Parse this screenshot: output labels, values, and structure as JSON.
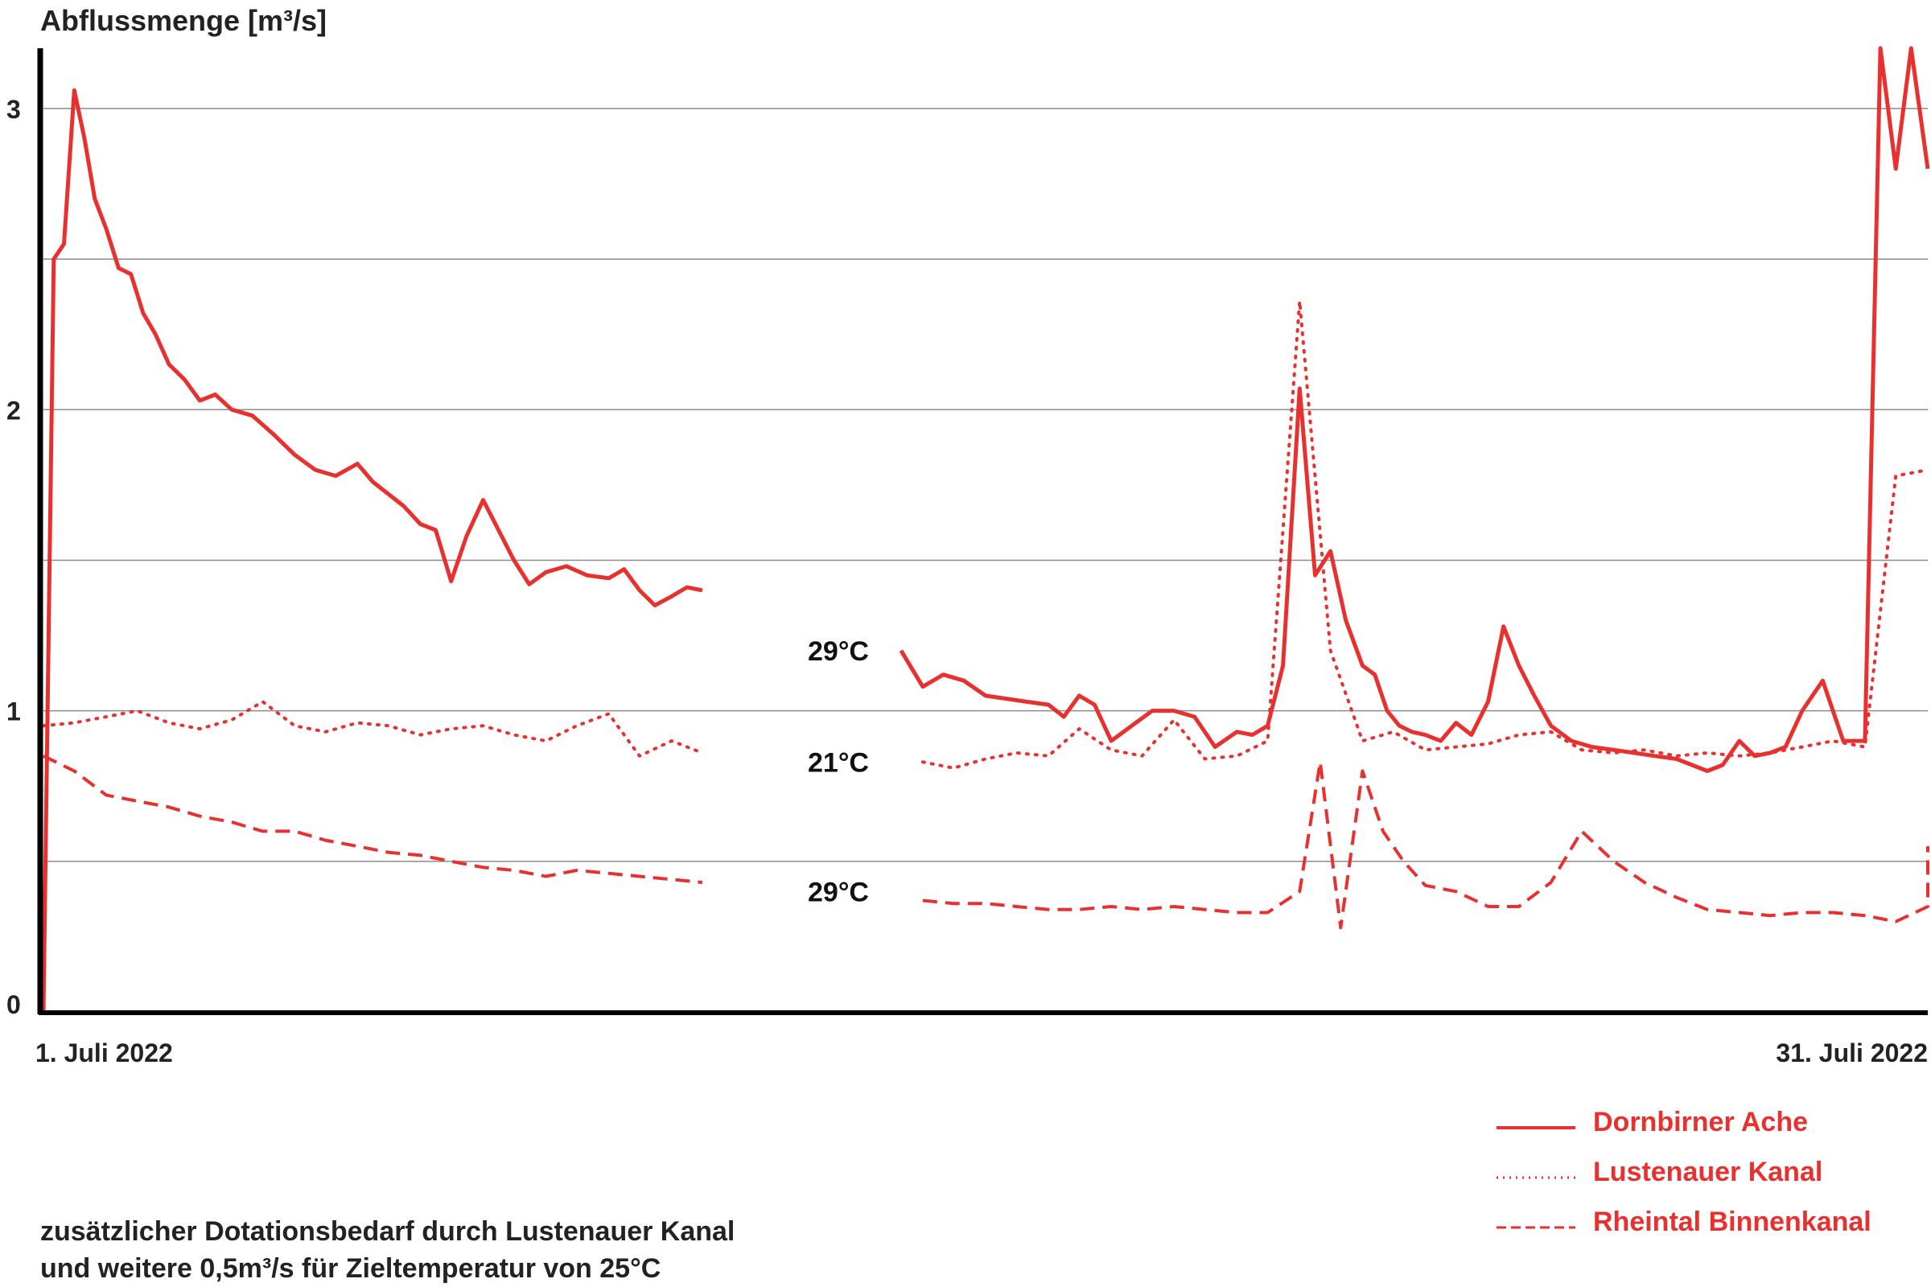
{
  "colors": {
    "series": "#e8312f",
    "axis": "#000000",
    "grid": "#8c8c8c",
    "text": "#222222"
  },
  "chart_data": {
    "type": "line",
    "title": "",
    "ylabel": "Abflussmenge [m³/s]",
    "ylim": [
      0,
      3.2
    ],
    "yticks": [
      {
        "value": 0,
        "label": "0"
      },
      {
        "value": 1,
        "label": "1"
      },
      {
        "value": 2,
        "label": "2"
      },
      {
        "value": 3,
        "label": "3"
      }
    ],
    "gridlines": [
      0.5,
      1,
      1.5,
      2,
      2.5,
      3
    ],
    "grid": true,
    "xlim": [
      "2022-07-01",
      "2022-07-31"
    ],
    "xticks": [
      {
        "value": "2022-07-01",
        "label": "1. Juli 2022"
      },
      {
        "value": "2022-07-31",
        "label": "31. Juli 2022"
      }
    ],
    "legend_position": "bottom-right",
    "series": [
      {
        "name": "Dornbirner Ache",
        "style": "solid",
        "x": [
          "2022-07-01",
          "2022-07-01",
          "2022-07-01",
          "2022-07-01",
          "2022-07-01",
          "2022-07-01",
          "2022-07-02",
          "2022-07-02",
          "2022-07-02",
          "2022-07-02",
          "2022-07-02",
          "2022-07-03",
          "2022-07-03",
          "2022-07-03",
          "2022-07-03",
          "2022-07-04",
          "2022-07-04",
          "2022-07-04",
          "2022-07-05",
          "2022-07-05",
          "2022-07-05",
          "2022-07-06",
          "2022-07-06",
          "2022-07-06",
          "2022-07-06",
          "2022-07-07",
          "2022-07-07",
          "2022-07-07",
          "2022-07-07",
          "2022-07-08",
          "2022-07-08",
          "2022-07-08",
          "2022-07-08",
          "2022-07-09",
          "2022-07-09",
          "2022-07-09",
          "2022-07-10",
          "2022-07-10",
          "2022-07-10",
          "2022-07-10",
          "2022-07-11",
          "2022-07-11",
          "2022-07-11",
          "2022-07-11",
          "2022-07-12",
          "2022-07-12",
          "2022-07-12",
          "2022-07-12",
          "2022-07-13",
          "2022-07-13",
          "2022-07-13",
          "2022-07-14",
          "2022-07-14",
          "2022-07-14",
          "2022-07-15",
          "2022-07-15",
          "2022-07-15",
          "2022-07-16",
          "2022-07-16",
          "2022-07-16",
          "2022-07-17",
          "2022-07-17",
          "2022-07-17",
          "2022-07-17",
          "2022-07-18",
          "2022-07-18",
          "2022-07-18",
          "2022-07-19",
          "2022-07-19",
          "2022-07-19",
          "2022-07-20",
          "2022-07-20",
          "2022-07-20",
          "2022-07-20",
          "2022-07-21",
          "2022-07-21",
          "2022-07-21",
          "2022-07-21",
          "2022-07-22",
          "2022-07-22",
          "2022-07-22",
          "2022-07-22",
          "2022-07-22",
          "2022-07-23",
          "2022-07-23",
          "2022-07-23",
          "2022-07-23",
          "2022-07-24",
          "2022-07-24",
          "2022-07-24",
          "2022-07-24",
          "2022-07-25",
          "2022-07-25",
          "2022-07-25",
          "2022-07-26",
          "2022-07-26",
          "2022-07-26",
          "2022-07-27",
          "2022-07-27",
          "2022-07-27",
          "2022-07-27",
          "2022-07-28",
          "2022-07-28",
          "2022-07-28",
          "2022-07-28",
          "2022-07-29",
          "2022-07-29",
          "2022-07-29",
          "2022-07-30",
          "2022-07-30",
          "2022-07-30",
          "2022-07-30",
          "2022-07-31",
          "2022-07-31",
          "2022-07-31",
          "2022-07-31"
        ],
        "y": [
          0,
          2.5,
          2.55,
          3.06,
          2.9,
          2.7,
          2.6,
          2.47,
          2.45,
          2.32,
          2.25,
          2.15,
          2.1,
          2.03,
          2.05,
          2.0,
          1.98,
          1.92,
          1.85,
          1.8,
          1.78,
          1.82,
          1.76,
          1.72,
          1.68,
          1.62,
          1.6,
          1.43,
          1.58,
          1.7,
          1.6,
          1.5,
          1.42,
          1.46,
          1.48,
          1.45,
          1.44,
          1.47,
          1.4,
          1.35,
          1.38,
          1.41,
          1.4,
          1.38,
          1.33,
          1.28,
          1.26,
          1.12,
          1.37,
          1.28,
          1.23,
          1.16,
          1.12,
          1.2,
          1.08,
          1.12,
          1.1,
          1.05,
          1.04,
          1.03,
          1.02,
          0.98,
          1.05,
          1.02,
          0.9,
          0.95,
          1.0,
          1.0,
          0.98,
          0.88,
          0.93,
          0.92,
          0.95,
          1.15,
          2.07,
          1.45,
          1.53,
          1.3,
          1.15,
          1.12,
          1.0,
          0.95,
          0.93,
          0.92,
          0.9,
          0.96,
          0.92,
          1.03,
          1.28,
          1.15,
          1.05,
          0.95,
          0.9,
          0.88,
          0.87,
          0.86,
          0.85,
          0.84,
          0.82,
          0.8,
          0.82,
          0.9,
          0.85,
          0.86,
          0.88,
          1.0,
          1.1,
          0.9,
          0.9,
          3.2,
          2.8,
          3.2,
          2.8,
          2.8,
          2.8,
          2.8
        ],
        "annotation": {
          "date": "2022-07-13",
          "value": 1.2,
          "label": "29°C"
        }
      },
      {
        "name": "Lustenauer Kanal",
        "style": "dotted",
        "x": [
          "2022-07-01",
          "2022-07-01",
          "2022-07-02",
          "2022-07-02",
          "2022-07-03",
          "2022-07-03",
          "2022-07-04",
          "2022-07-04",
          "2022-07-05",
          "2022-07-05",
          "2022-07-06",
          "2022-07-06",
          "2022-07-07",
          "2022-07-07",
          "2022-07-08",
          "2022-07-08",
          "2022-07-09",
          "2022-07-09",
          "2022-07-10",
          "2022-07-10",
          "2022-07-11",
          "2022-07-11",
          "2022-07-12",
          "2022-07-12",
          "2022-07-13",
          "2022-07-14",
          "2022-07-15",
          "2022-07-15",
          "2022-07-16",
          "2022-07-16",
          "2022-07-17",
          "2022-07-17",
          "2022-07-18",
          "2022-07-18",
          "2022-07-19",
          "2022-07-19",
          "2022-07-20",
          "2022-07-20",
          "2022-07-21",
          "2022-07-21",
          "2022-07-22",
          "2022-07-22",
          "2022-07-23",
          "2022-07-23",
          "2022-07-24",
          "2022-07-24",
          "2022-07-25",
          "2022-07-25",
          "2022-07-26",
          "2022-07-26",
          "2022-07-27",
          "2022-07-27",
          "2022-07-28",
          "2022-07-28",
          "2022-07-29",
          "2022-07-29",
          "2022-07-30",
          "2022-07-30",
          "2022-07-31",
          "2022-07-31"
        ],
        "y": [
          0.95,
          0.96,
          0.98,
          1.0,
          0.96,
          0.94,
          0.97,
          1.03,
          0.95,
          0.93,
          0.96,
          0.95,
          0.92,
          0.94,
          0.95,
          0.92,
          0.9,
          0.95,
          0.99,
          0.85,
          0.9,
          0.86,
          0.87,
          0.84,
          0.82,
          0.81,
          0.83,
          0.81,
          0.84,
          0.86,
          0.85,
          0.94,
          0.87,
          0.85,
          0.97,
          0.84,
          0.85,
          0.9,
          2.36,
          1.2,
          0.9,
          0.93,
          0.87,
          0.88,
          0.89,
          0.92,
          0.93,
          0.87,
          0.86,
          0.87,
          0.85,
          0.86,
          0.85,
          0.86,
          0.88,
          0.9,
          0.88,
          1.78,
          1.8,
          1.8
        ],
        "annotation": {
          "date": "2022-07-13",
          "value": 0.83,
          "label": "21°C"
        }
      },
      {
        "name": "Rheintal Binnenkanal",
        "style": "dashed",
        "x": [
          "2022-07-01",
          "2022-07-01",
          "2022-07-02",
          "2022-07-02",
          "2022-07-03",
          "2022-07-03",
          "2022-07-04",
          "2022-07-04",
          "2022-07-05",
          "2022-07-05",
          "2022-07-06",
          "2022-07-06",
          "2022-07-07",
          "2022-07-07",
          "2022-07-08",
          "2022-07-08",
          "2022-07-09",
          "2022-07-09",
          "2022-07-10",
          "2022-07-10",
          "2022-07-11",
          "2022-07-11",
          "2022-07-12",
          "2022-07-12",
          "2022-07-13",
          "2022-07-14",
          "2022-07-15",
          "2022-07-15",
          "2022-07-16",
          "2022-07-16",
          "2022-07-17",
          "2022-07-17",
          "2022-07-18",
          "2022-07-18",
          "2022-07-19",
          "2022-07-19",
          "2022-07-20",
          "2022-07-20",
          "2022-07-21",
          "2022-07-21",
          "2022-07-21",
          "2022-07-22",
          "2022-07-22",
          "2022-07-22",
          "2022-07-23",
          "2022-07-23",
          "2022-07-24",
          "2022-07-24",
          "2022-07-25",
          "2022-07-25",
          "2022-07-26",
          "2022-07-26",
          "2022-07-27",
          "2022-07-27",
          "2022-07-28",
          "2022-07-28",
          "2022-07-29",
          "2022-07-29",
          "2022-07-30",
          "2022-07-30",
          "2022-07-31",
          "2022-07-31"
        ],
        "y": [
          0.85,
          0.8,
          0.72,
          0.7,
          0.68,
          0.65,
          0.63,
          0.6,
          0.6,
          0.57,
          0.55,
          0.53,
          0.52,
          0.5,
          0.48,
          0.47,
          0.45,
          0.47,
          0.46,
          0.45,
          0.44,
          0.43,
          0.42,
          0.39,
          0.4,
          0.39,
          0.37,
          0.36,
          0.36,
          0.35,
          0.34,
          0.34,
          0.35,
          0.34,
          0.35,
          0.34,
          0.33,
          0.33,
          0.4,
          0.83,
          0.28,
          0.8,
          0.6,
          0.5,
          0.42,
          0.4,
          0.35,
          0.35,
          0.43,
          0.6,
          0.5,
          0.43,
          0.38,
          0.34,
          0.33,
          0.32,
          0.33,
          0.33,
          0.32,
          0.3,
          0.35,
          0.55
        ],
        "annotation": {
          "date": "2022-07-13",
          "value": 0.4,
          "label": "29°C"
        }
      }
    ],
    "note": {
      "line1": "zusätzlicher Dotationsbedarf durch Lustenauer Kanal",
      "line2": "und weitere 0,5m³/s für Zieltemperatur von 25°C"
    }
  }
}
